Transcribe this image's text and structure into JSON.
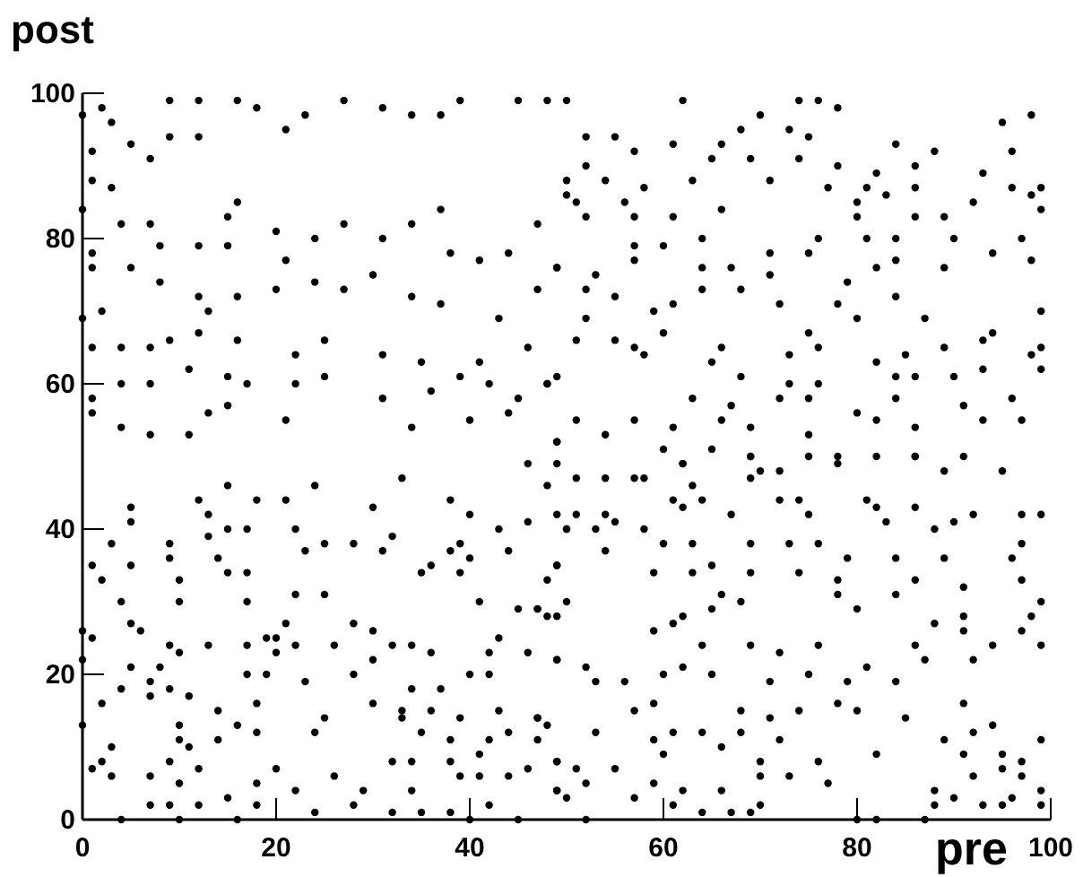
{
  "chart_data": {
    "type": "scatter",
    "xlabel": "pre",
    "ylabel": "post",
    "xlim": [
      0,
      100
    ],
    "ylim": [
      0,
      100
    ],
    "xticks": [
      0,
      20,
      40,
      60,
      80,
      100
    ],
    "yticks": [
      0,
      20,
      40,
      60,
      80,
      100
    ],
    "marker": "circle",
    "series": [
      {
        "color": "#000000",
        "x": [
          0,
          2,
          3,
          1,
          1,
          3,
          5,
          7,
          9,
          12,
          9,
          12,
          16,
          18,
          21,
          23,
          27,
          31,
          34,
          37,
          39,
          45,
          50,
          0,
          4,
          7,
          8,
          12,
          15,
          15,
          16,
          20,
          21,
          24,
          27,
          31,
          34,
          37,
          38,
          41,
          44,
          47,
          50,
          1,
          1,
          2,
          5,
          8,
          12,
          16,
          20,
          24,
          27,
          30,
          34,
          37,
          43,
          47,
          49,
          0,
          1,
          4,
          7,
          9,
          12,
          13,
          16,
          22,
          25,
          31,
          35,
          41,
          46,
          1,
          4,
          7,
          11,
          15,
          17,
          22,
          25,
          31,
          36,
          39,
          42,
          45,
          48,
          1,
          4,
          7,
          11,
          13,
          15,
          21,
          34,
          40,
          44,
          49,
          48,
          62,
          74,
          76,
          78,
          70,
          68,
          73,
          98,
          95,
          52,
          55,
          61,
          66,
          75,
          84,
          88,
          96,
          52,
          57,
          65,
          69,
          74,
          78,
          82,
          86,
          93,
          50,
          54,
          58,
          63,
          71,
          77,
          81,
          86,
          96,
          99,
          51,
          56,
          52,
          57,
          61,
          66,
          80,
          83,
          92,
          98,
          80,
          86,
          89,
          99,
          64,
          76,
          81,
          84,
          90,
          97,
          49,
          53,
          57,
          60,
          57,
          64,
          67,
          71,
          75,
          82,
          84,
          89,
          94,
          98,
          52,
          55,
          64,
          68,
          71,
          72,
          79,
          78,
          84,
          61,
          52,
          59,
          60,
          75,
          80,
          87,
          99,
          51,
          55,
          57,
          65,
          66,
          73,
          76,
          82,
          85,
          89,
          93,
          94,
          99,
          98,
          49,
          58,
          68,
          73,
          76,
          84,
          86,
          90,
          93,
          99,
          48,
          63,
          67,
          72,
          75,
          80,
          84,
          91,
          96,
          51,
          54,
          57,
          61,
          66,
          69,
          75,
          82,
          86,
          93,
          97,
          49,
          60,
          65,
          69,
          78,
          86,
          91,
          62,
          0,
          0,
          0,
          1,
          2,
          3,
          3,
          4,
          1,
          2,
          3,
          4,
          1,
          2,
          4,
          5,
          5,
          5,
          5,
          5,
          6,
          7,
          7,
          7,
          7,
          8,
          9,
          9,
          9,
          9,
          9,
          9,
          10,
          10,
          10,
          10,
          10,
          10,
          10,
          11,
          11,
          12,
          12,
          12,
          13,
          13,
          13,
          14,
          14,
          14,
          15,
          15,
          15,
          15,
          16,
          16,
          17,
          17,
          17,
          17,
          17,
          18,
          18,
          18,
          18,
          18,
          19,
          19,
          20,
          20,
          20,
          21,
          21,
          22,
          22,
          22,
          22,
          23,
          23,
          24,
          24,
          24,
          25,
          25,
          25,
          26,
          26,
          28,
          28,
          28,
          28,
          29,
          30,
          30,
          30,
          30,
          31,
          32,
          32,
          32,
          32,
          33,
          33,
          33,
          34,
          34,
          34,
          34,
          35,
          35,
          35,
          36,
          36,
          36,
          37,
          38,
          38,
          38,
          38,
          38,
          39,
          39,
          39,
          39,
          40,
          40,
          40,
          40,
          41,
          41,
          41,
          42,
          42,
          42,
          42,
          43,
          43,
          43,
          44,
          44,
          44,
          45,
          45,
          46,
          46,
          46,
          46,
          47,
          47,
          47,
          48,
          48,
          49,
          49,
          49,
          49,
          50,
          50,
          50,
          48,
          49,
          51,
          54,
          57,
          58,
          62,
          63,
          69,
          70,
          72,
          75,
          78,
          82,
          86,
          89,
          95,
          49,
          51,
          54,
          50,
          53,
          55,
          58,
          61,
          62,
          64,
          67,
          69,
          72,
          74,
          75,
          81,
          82,
          86,
          83,
          88,
          90,
          92,
          97,
          99,
          54,
          60,
          63,
          69,
          73,
          76,
          79,
          84,
          89,
          96,
          97,
          49,
          59,
          63,
          65,
          69,
          74,
          78,
          86,
          91,
          97,
          48,
          47,
          49,
          62,
          65,
          66,
          68,
          78,
          80,
          84,
          88,
          91,
          99,
          98,
          59,
          61,
          64,
          69,
          72,
          76,
          86,
          91,
          94,
          97,
          99,
          49,
          52,
          53,
          56,
          60,
          62,
          65,
          71,
          75,
          79,
          81,
          84,
          87,
          92,
          57,
          59,
          68,
          71,
          74,
          78,
          80,
          85,
          91,
          47,
          53,
          59,
          61,
          64,
          68,
          72,
          89,
          92,
          94,
          99,
          49,
          51,
          55,
          60,
          66,
          70,
          70,
          73,
          76,
          82,
          91,
          95,
          97,
          49,
          52,
          57,
          59,
          62,
          66,
          70,
          77,
          88,
          90,
          92,
          95,
          97,
          99,
          52,
          61,
          64,
          67,
          69,
          80,
          82,
          87,
          88,
          93,
          95,
          99,
          96
        ],
        "values": [
          97,
          98,
          96,
          92,
          88,
          87,
          93,
          91,
          99,
          99,
          94,
          94,
          99,
          98,
          95,
          97,
          99,
          98,
          97,
          97,
          99,
          99,
          99,
          84,
          82,
          82,
          79,
          79,
          79,
          83,
          85,
          81,
          77,
          80,
          82,
          80,
          82,
          84,
          78,
          77,
          78,
          82,
          86,
          78,
          76,
          70,
          76,
          74,
          72,
          72,
          73,
          74,
          73,
          75,
          72,
          71,
          69,
          73,
          76,
          69,
          65,
          65,
          65,
          66,
          67,
          70,
          66,
          64,
          66,
          64,
          63,
          63,
          65,
          58,
          60,
          60,
          62,
          61,
          60,
          60,
          61,
          58,
          59,
          61,
          60,
          58,
          60,
          56,
          54,
          53,
          53,
          56,
          57,
          55,
          54,
          55,
          56,
          52,
          99,
          99,
          99,
          99,
          98,
          97,
          95,
          95,
          97,
          96,
          94,
          94,
          93,
          93,
          94,
          93,
          92,
          92,
          90,
          92,
          91,
          91,
          91,
          90,
          89,
          90,
          89,
          88,
          88,
          87,
          88,
          88,
          87,
          87,
          87,
          87,
          87,
          85,
          85,
          83,
          83,
          83,
          84,
          85,
          86,
          85,
          86,
          83,
          83,
          83,
          84,
          80,
          80,
          80,
          80,
          80,
          80,
          76,
          75,
          79,
          79,
          77,
          76,
          76,
          78,
          78,
          76,
          77,
          76,
          78,
          77,
          73,
          72,
          73,
          73,
          75,
          71,
          74,
          71,
          72,
          71,
          69,
          70,
          67,
          67,
          69,
          69,
          70,
          66,
          66,
          65,
          63,
          65,
          64,
          65,
          63,
          64,
          65,
          66,
          67,
          65,
          64,
          61,
          64,
          61,
          60,
          60,
          61,
          61,
          61,
          62,
          62,
          60,
          58,
          57,
          58,
          58,
          56,
          58,
          57,
          58,
          55,
          53,
          55,
          54,
          55,
          54,
          53,
          55,
          54,
          55,
          55,
          52,
          51,
          51,
          50,
          50,
          50,
          50,
          49,
          13,
          22,
          26,
          7,
          8,
          6,
          10,
          0,
          35,
          33,
          38,
          30,
          25,
          16,
          18,
          21,
          27,
          35,
          41,
          43,
          26,
          19,
          17,
          6,
          2,
          21,
          38,
          36,
          24,
          18,
          8,
          2,
          33,
          30,
          23,
          13,
          11,
          5,
          0,
          17,
          10,
          7,
          2,
          44,
          42,
          39,
          24,
          36,
          15,
          11,
          46,
          40,
          34,
          3,
          13,
          0,
          40,
          34,
          30,
          24,
          20,
          44,
          16,
          12,
          5,
          2,
          25,
          20,
          25,
          23,
          7,
          44,
          27,
          40,
          31,
          24,
          4,
          37,
          19,
          12,
          1,
          46,
          38,
          31,
          14,
          6,
          24,
          38,
          27,
          20,
          2,
          4,
          43,
          22,
          26,
          16,
          37,
          39,
          24,
          8,
          1,
          14,
          15,
          47,
          24,
          18,
          4,
          8,
          34,
          12,
          1,
          35,
          23,
          15,
          18,
          44,
          37,
          11,
          8,
          1,
          38,
          34,
          14,
          6,
          42,
          36,
          20,
          0,
          30,
          6,
          9,
          23,
          20,
          11,
          2,
          40,
          15,
          25,
          37,
          12,
          6,
          29,
          0,
          49,
          41,
          23,
          7,
          29,
          14,
          11,
          28,
          13,
          35,
          22,
          8,
          4,
          30,
          40,
          3,
          46,
          49,
          47,
          47,
          47,
          47,
          49,
          46,
          50,
          48,
          48,
          50,
          49,
          50,
          50,
          48,
          48,
          42,
          42,
          42,
          40,
          40,
          41,
          40,
          44,
          43,
          44,
          42,
          47,
          44,
          44,
          42,
          44,
          43,
          43,
          41,
          40,
          41,
          42,
          42,
          42,
          37,
          38,
          38,
          38,
          38,
          38,
          36,
          36,
          36,
          36,
          38,
          35,
          34,
          34,
          35,
          34,
          34,
          33,
          33,
          32,
          33,
          33,
          29,
          28,
          28,
          29,
          31,
          30,
          31,
          29,
          31,
          27,
          28,
          30,
          28,
          26,
          27,
          24,
          24,
          23,
          24,
          24,
          26,
          24,
          26,
          24,
          22,
          21,
          19,
          19,
          20,
          21,
          20,
          19,
          20,
          19,
          21,
          19,
          22,
          22,
          15,
          16,
          15,
          14,
          15,
          16,
          15,
          14,
          16,
          14,
          12,
          11,
          12,
          12,
          12,
          11,
          11,
          12,
          13,
          11,
          8,
          7,
          7,
          9,
          10,
          8,
          6,
          6,
          8,
          9,
          9,
          9,
          8,
          4,
          5,
          3,
          5,
          4,
          4,
          2,
          5,
          4,
          3,
          6,
          7,
          6,
          4,
          0,
          2,
          1,
          1,
          1,
          0,
          0,
          0,
          2,
          2,
          2,
          2,
          3
        ]
      }
    ]
  }
}
